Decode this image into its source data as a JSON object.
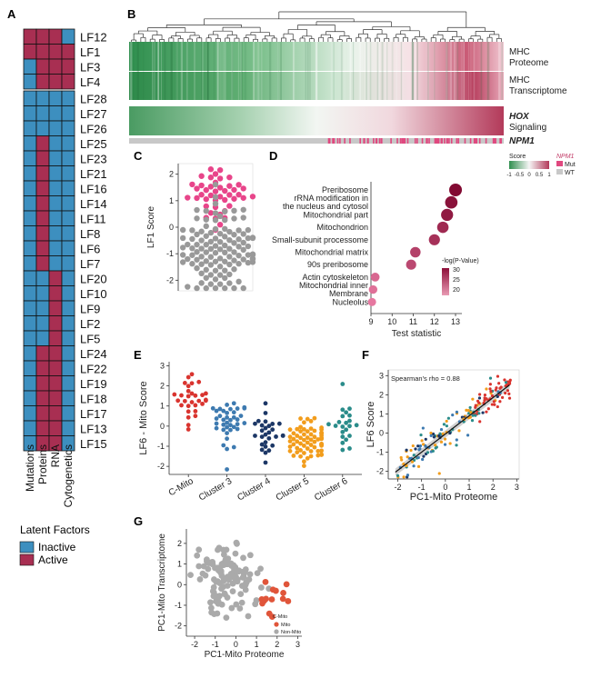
{
  "colors": {
    "inactive": "#3d8fbf",
    "active": "#a82f52",
    "mut": "#e0487f",
    "wt": "#c8c8c8",
    "pink": "#e8458a",
    "grey": "#999999",
    "c_mito": "#d9342f",
    "cluster3": "#3d7ab0",
    "cluster4": "#1c3766",
    "cluster5": "#f29d1c",
    "cluster6": "#2a8c8a",
    "go_red": "#e0342f"
  },
  "panels": {
    "a": "A",
    "b": "B",
    "c": "C",
    "d": "D",
    "e": "E",
    "f": "F",
    "g": "G"
  },
  "panelA": {
    "columns": [
      "Mutations",
      "Proteins",
      "RNA",
      "Cytogenetics"
    ],
    "group1": [
      {
        "name": "LF12",
        "v": [
          1,
          1,
          1,
          0
        ]
      },
      {
        "name": "LF1",
        "v": [
          1,
          1,
          1,
          1
        ]
      },
      {
        "name": "LF3",
        "v": [
          0,
          1,
          1,
          1
        ]
      },
      {
        "name": "LF4",
        "v": [
          0,
          1,
          1,
          1
        ]
      }
    ],
    "group2": [
      {
        "name": "LF28",
        "v": [
          0,
          0,
          0,
          0
        ]
      },
      {
        "name": "LF27",
        "v": [
          0,
          0,
          0,
          0
        ]
      },
      {
        "name": "LF26",
        "v": [
          0,
          0,
          0,
          0
        ]
      },
      {
        "name": "LF25",
        "v": [
          0,
          1,
          0,
          0
        ]
      },
      {
        "name": "LF23",
        "v": [
          0,
          1,
          0,
          0
        ]
      },
      {
        "name": "LF21",
        "v": [
          0,
          1,
          0,
          0
        ]
      },
      {
        "name": "LF16",
        "v": [
          0,
          1,
          0,
          0
        ]
      },
      {
        "name": "LF14",
        "v": [
          0,
          1,
          0,
          0
        ]
      },
      {
        "name": "LF11",
        "v": [
          0,
          1,
          0,
          0
        ]
      },
      {
        "name": "LF8",
        "v": [
          0,
          1,
          0,
          0
        ]
      },
      {
        "name": "LF6",
        "v": [
          0,
          1,
          0,
          0
        ]
      },
      {
        "name": "LF7",
        "v": [
          0,
          1,
          0,
          0
        ]
      },
      {
        "name": "LF20",
        "v": [
          0,
          0,
          1,
          0
        ]
      },
      {
        "name": "LF10",
        "v": [
          0,
          0,
          1,
          0
        ]
      },
      {
        "name": "LF9",
        "v": [
          0,
          0,
          1,
          0
        ]
      },
      {
        "name": "LF2",
        "v": [
          0,
          0,
          1,
          0
        ]
      },
      {
        "name": "LF5",
        "v": [
          0,
          0,
          1,
          0
        ]
      },
      {
        "name": "LF24",
        "v": [
          0,
          1,
          1,
          0
        ]
      },
      {
        "name": "LF22",
        "v": [
          0,
          1,
          1,
          0
        ]
      },
      {
        "name": "LF19",
        "v": [
          0,
          1,
          1,
          0
        ]
      },
      {
        "name": "LF18",
        "v": [
          0,
          1,
          1,
          0
        ]
      },
      {
        "name": "LF17",
        "v": [
          0,
          1,
          1,
          0
        ]
      },
      {
        "name": "LF13",
        "v": [
          0,
          1,
          1,
          0
        ]
      },
      {
        "name": "LF15",
        "v": [
          0,
          1,
          1,
          0
        ]
      }
    ],
    "legend_title": "Latent Factors",
    "legend_inactive": "Inactive",
    "legend_active": "Active"
  },
  "panelB": {
    "row1": "MHC",
    "row1b": "Proteome",
    "row2": "MHC",
    "row2b": "Transcriptome",
    "row3": "HOX",
    "row3b": "Signaling",
    "row4": "NPM1",
    "legend_score": "Score",
    "legend_ticks": [
      "-1",
      "-0.5",
      "0",
      "0.5",
      "1"
    ],
    "legend_npm1": "NPM1",
    "legend_mut": "Mut",
    "legend_wt": "WT"
  },
  "chart_data": [
    {
      "panel": "C",
      "type": "scatter",
      "ylabel": "LF1 Score",
      "yticks": [
        "-2",
        "-1",
        "0",
        "1",
        "2"
      ],
      "ylim": [
        -2.4,
        2.4
      ],
      "groups": [
        {
          "color": "pink",
          "n": 44,
          "center": 1.2,
          "spread": 0.55
        },
        {
          "color": "grey",
          "n": 120,
          "center": -0.7,
          "spread": 0.75
        }
      ]
    },
    {
      "panel": "D",
      "type": "scatter",
      "xlabel": "Test statistic",
      "xticks": [
        "9",
        "10",
        "11",
        "12",
        "13"
      ],
      "xlim": [
        9,
        13.3
      ],
      "legend_title": "-log(P-Value)",
      "legend_ticks": [
        "30",
        "25",
        "20"
      ],
      "terms": [
        {
          "label": "Preribosome",
          "x": 13.0,
          "p": 32,
          "red": false
        },
        {
          "label": "rRNA modification in the nucleus and cytosol",
          "x": 12.8,
          "p": 31,
          "red": false
        },
        {
          "label": "Mitochondrial part",
          "x": 12.6,
          "p": 30,
          "red": true
        },
        {
          "label": "Mitochondrion",
          "x": 12.4,
          "p": 28,
          "red": true
        },
        {
          "label": "Small-subunit processome",
          "x": 12.0,
          "p": 27,
          "red": false
        },
        {
          "label": "Mitochondrial matrix",
          "x": 11.1,
          "p": 25,
          "red": true
        },
        {
          "label": "90s preribosome",
          "x": 10.9,
          "p": 24,
          "red": false
        },
        {
          "label": "Actin cytoskeleton",
          "x": 9.2,
          "p": 20,
          "red": false
        },
        {
          "label": "Mitochondrial inner Membrane",
          "x": 9.1,
          "p": 19,
          "red": true
        },
        {
          "label": "Nucleolus",
          "x": 9.05,
          "p": 18,
          "red": false
        }
      ]
    },
    {
      "panel": "E",
      "type": "scatter",
      "ylabel": "LF6 - Mito Score",
      "yticks": [
        "-2",
        "-1",
        "0",
        "1",
        "2",
        "3"
      ],
      "ylim": [
        -2.4,
        3.2
      ],
      "categories": [
        "C-Mito",
        "Cluster 3",
        "Cluster 4",
        "Cluster 5",
        "Cluster 6"
      ],
      "groups": [
        {
          "color": "c_mito",
          "n": 30,
          "center": 1.3,
          "spread": 0.7
        },
        {
          "color": "cluster3",
          "n": 38,
          "center": 0.2,
          "spread": 0.55
        },
        {
          "color": "cluster4",
          "n": 28,
          "center": -0.1,
          "spread": 0.65
        },
        {
          "color": "cluster5",
          "n": 70,
          "center": -0.8,
          "spread": 0.6
        },
        {
          "color": "cluster6",
          "n": 22,
          "center": 0.2,
          "spread": 0.6
        }
      ]
    },
    {
      "panel": "F",
      "type": "scatter",
      "xlabel": "PC1-Mito Proteome",
      "ylabel": "LF6 Score",
      "annotation": "Spearman's rho = 0.88",
      "xticks": [
        "-2",
        "-1",
        "0",
        "1",
        "2",
        "3"
      ],
      "yticks": [
        "-2",
        "-1",
        "0",
        "1",
        "2",
        "3"
      ],
      "xlim": [
        -2.4,
        3.1
      ],
      "ylim": [
        -2.4,
        3.3
      ],
      "fit": {
        "slope": 0.95,
        "intercept": -0.05
      }
    },
    {
      "panel": "G",
      "type": "scatter",
      "xlabel": "PC1-Mito Proteome",
      "ylabel": "PC1-Mito Transcriptome",
      "xticks": [
        "-2",
        "-1",
        "0",
        "1",
        "2",
        "3"
      ],
      "yticks": [
        "-2",
        "-1",
        "0",
        "1",
        "2"
      ],
      "xlim": [
        -2.4,
        3.2
      ],
      "ylim": [
        -2.5,
        2.7
      ],
      "legend_title": "C-Mito",
      "legend_items": [
        {
          "label": "Mito",
          "color": "#e0553a"
        },
        {
          "label": "Non-Mito",
          "color": "#aaaaaa"
        }
      ]
    }
  ]
}
